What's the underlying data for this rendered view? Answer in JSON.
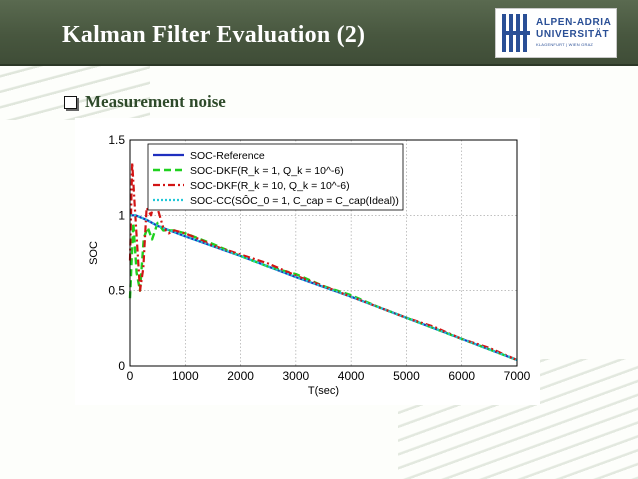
{
  "slide": {
    "title": "Kalman Filter Evaluation (2)",
    "bullet": "Measurement noise"
  },
  "logo": {
    "line1": "ALPEN-ADRIA",
    "line2": "UNIVERSITÄT",
    "line3": "KLAGENFURT | WIEN GRAZ"
  },
  "colors": {
    "title_bar": "#4b5a43",
    "series_reference": "#1f2fbf",
    "series_dkf1": "#1fd11f",
    "series_dkf10": "#d21414",
    "series_cc": "#22c8d8"
  },
  "chart_data": {
    "type": "line",
    "xlabel": "T(sec)",
    "ylabel": "SOC",
    "xlim": [
      0,
      7000
    ],
    "ylim": [
      0,
      1.5
    ],
    "xticks": [
      "0",
      "1000",
      "2000",
      "3000",
      "4000",
      "5000",
      "6000",
      "7000"
    ],
    "yticks": [
      "0",
      "0.5",
      "1",
      "1.5"
    ],
    "grid": true,
    "legend_position": "top-left",
    "series": [
      {
        "name": "SOC-Reference",
        "style": "solid",
        "x": [
          0,
          100,
          300,
          500,
          1000,
          2000,
          3000,
          4000,
          5000,
          6000,
          7000
        ],
        "y": [
          1.0,
          1.0,
          0.97,
          0.93,
          0.86,
          0.73,
          0.59,
          0.46,
          0.32,
          0.18,
          0.04
        ]
      },
      {
        "name": "SOC-DKF(R_k = 1, Q_k = 10^-6)",
        "style": "dashed",
        "x": [
          0,
          60,
          120,
          180,
          250,
          320,
          400,
          500,
          600,
          800,
          1000,
          1500,
          2000,
          2500,
          3000,
          3500,
          4000,
          4500,
          5000,
          5500,
          6000,
          6500,
          7000
        ],
        "y": [
          0.45,
          0.95,
          0.62,
          0.5,
          0.85,
          0.92,
          0.84,
          0.95,
          0.9,
          0.9,
          0.88,
          0.81,
          0.73,
          0.66,
          0.61,
          0.53,
          0.47,
          0.39,
          0.32,
          0.25,
          0.18,
          0.11,
          0.04
        ]
      },
      {
        "name": "SOC-DKF(R_k = 10, Q_k = 10^-6)",
        "style": "dash-dot",
        "x": [
          0,
          40,
          80,
          130,
          180,
          240,
          300,
          380,
          450,
          520,
          600,
          700,
          800,
          1000,
          1200,
          1500,
          2000,
          2500,
          3000,
          3500,
          4000,
          4500,
          5000,
          5500,
          6000,
          6500,
          7000
        ],
        "y": [
          0.7,
          1.35,
          1.1,
          0.8,
          0.5,
          0.65,
          1.05,
          1.0,
          1.1,
          1.02,
          0.92,
          0.88,
          0.9,
          0.88,
          0.85,
          0.8,
          0.74,
          0.68,
          0.6,
          0.53,
          0.46,
          0.39,
          0.32,
          0.26,
          0.18,
          0.12,
          0.04
        ]
      },
      {
        "name": "SOC-CC(SÔC_0 = 1, C_cap = C_cap(Ideal))",
        "style": "dotted",
        "x": [
          0,
          100,
          300,
          500,
          1000,
          2000,
          3000,
          4000,
          5000,
          6000,
          7000
        ],
        "y": [
          1.0,
          1.0,
          0.97,
          0.93,
          0.86,
          0.73,
          0.59,
          0.46,
          0.32,
          0.18,
          0.04
        ]
      }
    ]
  }
}
